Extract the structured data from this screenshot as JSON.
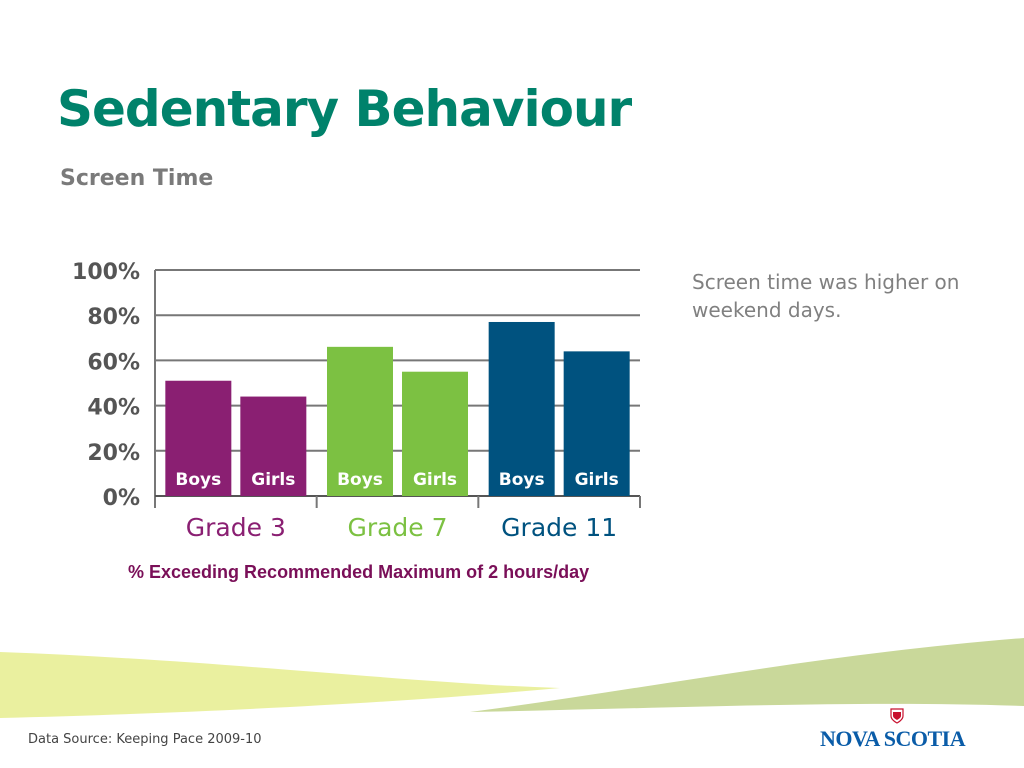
{
  "slide": {
    "title": "Sedentary Behaviour",
    "subtitle": "Screen Time",
    "note": "Screen time was higher on weekend days.",
    "source": "Data Source: Keeping Pace 2009-10",
    "logo_text": "NOVA SCOTIA"
  },
  "chart_data": {
    "type": "bar",
    "title": "",
    "xlabel": "% Exceeding Recommended Maximum of 2 hours/day",
    "ylabel": "",
    "ylim": [
      0,
      100
    ],
    "yticks": [
      0,
      20,
      40,
      60,
      80,
      100
    ],
    "ytick_labels": [
      "0%",
      "20%",
      "40%",
      "60%",
      "80%",
      "100%"
    ],
    "grid": true,
    "groups": [
      {
        "label": "Grade 3",
        "color": "#8a1f72",
        "bars": [
          {
            "label": "Boys",
            "value": 51
          },
          {
            "label": "Girls",
            "value": 44
          }
        ]
      },
      {
        "label": "Grade 7",
        "color": "#7cc142",
        "bars": [
          {
            "label": "Boys",
            "value": 66
          },
          {
            "label": "Girls",
            "value": 55
          }
        ]
      },
      {
        "label": "Grade 11",
        "color": "#00527f",
        "bars": [
          {
            "label": "Boys",
            "value": 77
          },
          {
            "label": "Girls",
            "value": 64
          }
        ]
      }
    ]
  },
  "colors": {
    "title": "#00826b",
    "axis_text": "#555555",
    "gridline": "#777777",
    "swoosh_yellow": "#e9ef9a",
    "swoosh_green": "#c9d89a"
  }
}
